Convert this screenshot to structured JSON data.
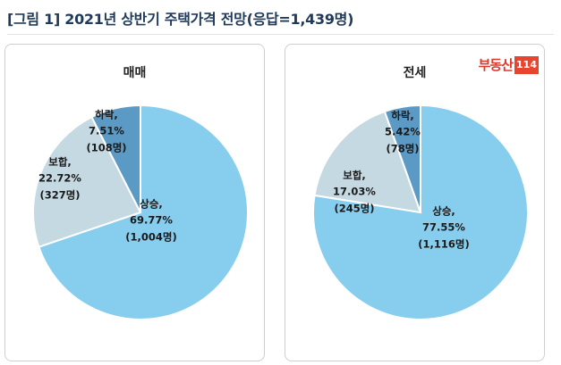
{
  "title": "[그림 1] 2021년 상반기 주택가격 전망(응답=1,439명)",
  "logo": {
    "text": "부동산",
    "number": "114"
  },
  "colors": {
    "up": "#86cdee",
    "hold": "#c5d9e2",
    "down": "#5b9ac4"
  },
  "chart_data": [
    {
      "type": "pie",
      "title": "매매",
      "slices": [
        {
          "label": "상승,",
          "percent": "69.77%",
          "count": "(1,004명)",
          "value": 69.77
        },
        {
          "label": "보합,",
          "percent": "22.72%",
          "count": "(327명)",
          "value": 22.72
        },
        {
          "label": "하락,",
          "percent": "7.51%",
          "count": "(108명)",
          "value": 7.51
        }
      ]
    },
    {
      "type": "pie",
      "title": "전세",
      "slices": [
        {
          "label": "상승,",
          "percent": "77.55%",
          "count": "(1,116명)",
          "value": 77.55
        },
        {
          "label": "보합,",
          "percent": "17.03%",
          "count": "(245명)",
          "value": 17.03
        },
        {
          "label": "하락,",
          "percent": "5.42%",
          "count": "(78명)",
          "value": 5.42
        }
      ]
    }
  ]
}
